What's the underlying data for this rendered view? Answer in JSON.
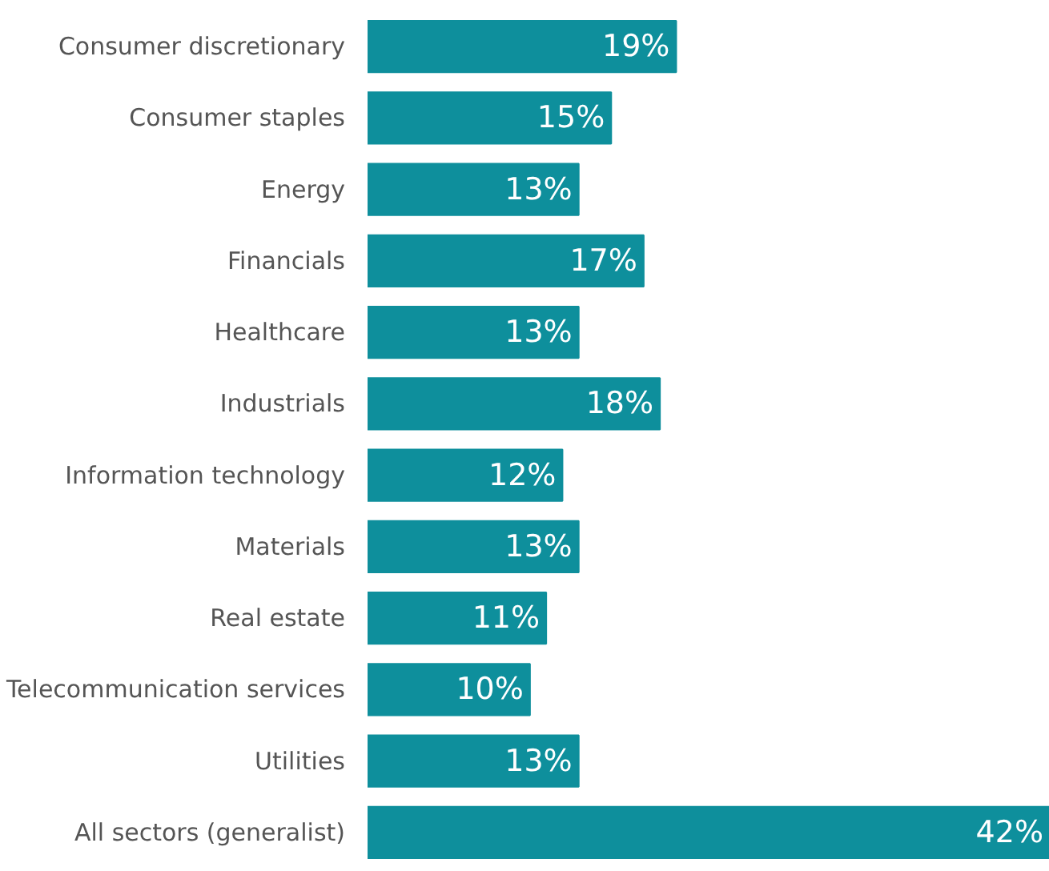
{
  "chart_data": {
    "type": "bar",
    "orientation": "horizontal",
    "color": "#0e8f9c",
    "categories": [
      "Consumer discretionary",
      "Consumer staples",
      "Energy",
      "Financials",
      "Healthcare",
      "Industrials",
      "Information technology",
      "Materials",
      "Real estate",
      "Telecommunication services",
      "Utilities",
      "All sectors (generalist)"
    ],
    "values": [
      19,
      15,
      13,
      17,
      13,
      18,
      12,
      13,
      11,
      10,
      13,
      42
    ],
    "value_labels": [
      "19%",
      "15%",
      "13%",
      "17%",
      "13%",
      "18%",
      "12%",
      "13%",
      "11%",
      "10%",
      "13%",
      "42%"
    ],
    "grid": false
  }
}
